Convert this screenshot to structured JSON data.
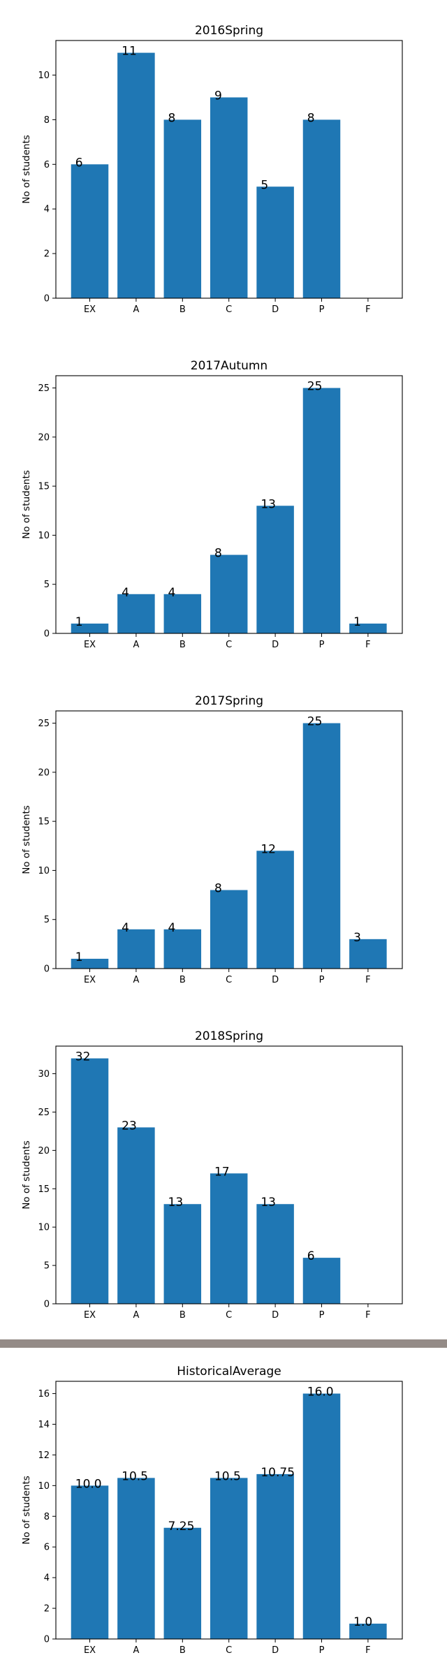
{
  "chart_data": [
    {
      "type": "bar",
      "title": "2016Spring",
      "xlabel": "",
      "ylabel": "No of students",
      "categories": [
        "EX",
        "A",
        "B",
        "C",
        "D",
        "P",
        "F"
      ],
      "values": [
        6,
        11,
        8,
        9,
        5,
        8,
        0
      ],
      "data_labels": [
        "6",
        "11",
        "8",
        "9",
        "5",
        "8",
        ""
      ],
      "ylim": [
        0,
        11.55
      ],
      "yticks": [
        0,
        2,
        4,
        6,
        8,
        10
      ],
      "color": "#1f77b4"
    },
    {
      "type": "bar",
      "title": "2017Autumn",
      "xlabel": "",
      "ylabel": "No of students",
      "categories": [
        "EX",
        "A",
        "B",
        "C",
        "D",
        "P",
        "F"
      ],
      "values": [
        1,
        4,
        4,
        8,
        13,
        25,
        1
      ],
      "data_labels": [
        "1",
        "4",
        "4",
        "8",
        "13",
        "25",
        "1"
      ],
      "ylim": [
        0,
        26.25
      ],
      "yticks": [
        0,
        5,
        10,
        15,
        20,
        25
      ],
      "color": "#1f77b4"
    },
    {
      "type": "bar",
      "title": "2017Spring",
      "xlabel": "",
      "ylabel": "No of students",
      "categories": [
        "EX",
        "A",
        "B",
        "C",
        "D",
        "P",
        "F"
      ],
      "values": [
        1,
        4,
        4,
        8,
        12,
        25,
        3
      ],
      "data_labels": [
        "1",
        "4",
        "4",
        "8",
        "12",
        "25",
        "3"
      ],
      "ylim": [
        0,
        26.25
      ],
      "yticks": [
        0,
        5,
        10,
        15,
        20,
        25
      ],
      "color": "#1f77b4"
    },
    {
      "type": "bar",
      "title": "2018Spring",
      "xlabel": "",
      "ylabel": "No of students",
      "categories": [
        "EX",
        "A",
        "B",
        "C",
        "D",
        "P",
        "F"
      ],
      "values": [
        32,
        23,
        13,
        17,
        13,
        6,
        0
      ],
      "data_labels": [
        "32",
        "23",
        "13",
        "17",
        "13",
        "6",
        ""
      ],
      "ylim": [
        0,
        33.6
      ],
      "yticks": [
        0,
        5,
        10,
        15,
        20,
        25,
        30
      ],
      "color": "#1f77b4"
    },
    {
      "type": "bar",
      "title": "HistoricalAverage",
      "xlabel": "",
      "ylabel": "No of students",
      "categories": [
        "EX",
        "A",
        "B",
        "C",
        "D",
        "P",
        "F"
      ],
      "values": [
        10.0,
        10.5,
        7.25,
        10.5,
        10.75,
        16.0,
        1.0
      ],
      "data_labels": [
        "10.0",
        "10.5",
        "7.25",
        "10.5",
        "10.75",
        "16.0",
        "1.0"
      ],
      "ylim": [
        0,
        16.8
      ],
      "yticks": [
        0,
        2,
        4,
        6,
        8,
        10,
        12,
        14,
        16
      ],
      "color": "#1f77b4"
    }
  ],
  "separator_color": "#948b87"
}
